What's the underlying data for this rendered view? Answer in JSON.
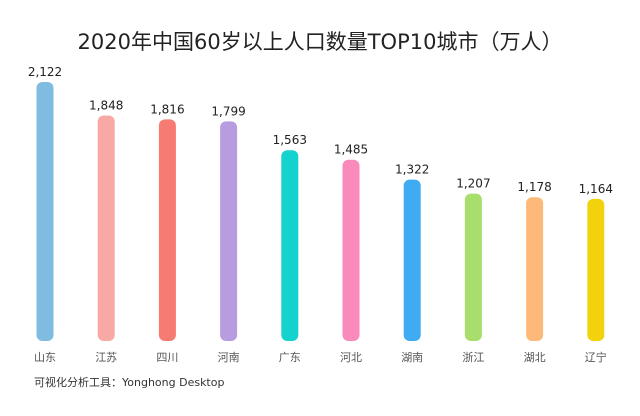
{
  "chart_data": {
    "type": "bar",
    "title": "2020年中国60岁以上人口数量TOP10城市（万人）",
    "categories": [
      "山东",
      "江苏",
      "四川",
      "河南",
      "广东",
      "河北",
      "湖南",
      "浙江",
      "湖北",
      "辽宁"
    ],
    "values": [
      2122,
      1848,
      1816,
      1799,
      1563,
      1485,
      1322,
      1207,
      1178,
      1164
    ],
    "value_labels": [
      "2,122",
      "1,848",
      "1,816",
      "1,799",
      "1,563",
      "1,485",
      "1,322",
      "1,207",
      "1,178",
      "1,164"
    ],
    "colors": [
      "#80bbe2",
      "#f8a9a5",
      "#f67b73",
      "#b79ce0",
      "#14d2cd",
      "#f98abb",
      "#3eabf2",
      "#a8de6c",
      "#fdb979",
      "#f2d20c"
    ],
    "xlabel": "",
    "ylabel": "",
    "ylim": [
      0,
      2122
    ],
    "grid": false,
    "legend": "none"
  },
  "footer": "可视化分析工具：Yonghong Desktop"
}
